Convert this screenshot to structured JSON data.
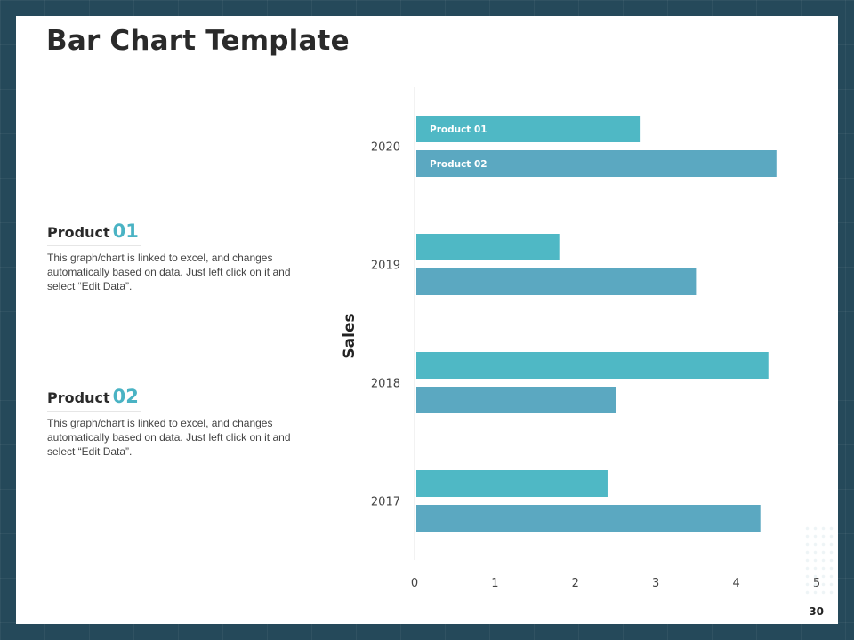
{
  "slide": {
    "title": "Bar Chart Template",
    "page_number": "30"
  },
  "products": [
    {
      "label": "Product",
      "number": "01",
      "description": "This graph/chart is linked to excel, and changes automatically based on data. Just left click on it and select “Edit Data”."
    },
    {
      "label": "Product",
      "number": "02",
      "description": "This graph/chart is linked to excel, and changes automatically based on data. Just left click on it and select “Edit Data”."
    }
  ],
  "chart_data": {
    "type": "bar",
    "orientation": "horizontal",
    "title": "",
    "ylabel": "Sales",
    "xlabel": "",
    "categories": [
      "2020",
      "2019",
      "2018",
      "2017"
    ],
    "series": [
      {
        "name": "Product 01",
        "color": "#4fb8c5",
        "values": [
          2.8,
          1.8,
          4.4,
          2.4
        ]
      },
      {
        "name": "Product 02",
        "color": "#5ba8c1",
        "values": [
          4.5,
          3.5,
          2.5,
          4.3
        ]
      }
    ],
    "xlim": [
      0,
      5
    ],
    "xticks": [
      "0",
      "1",
      "2",
      "3",
      "4",
      "5"
    ],
    "legend": "inside-bars-top-category",
    "grid": false
  }
}
